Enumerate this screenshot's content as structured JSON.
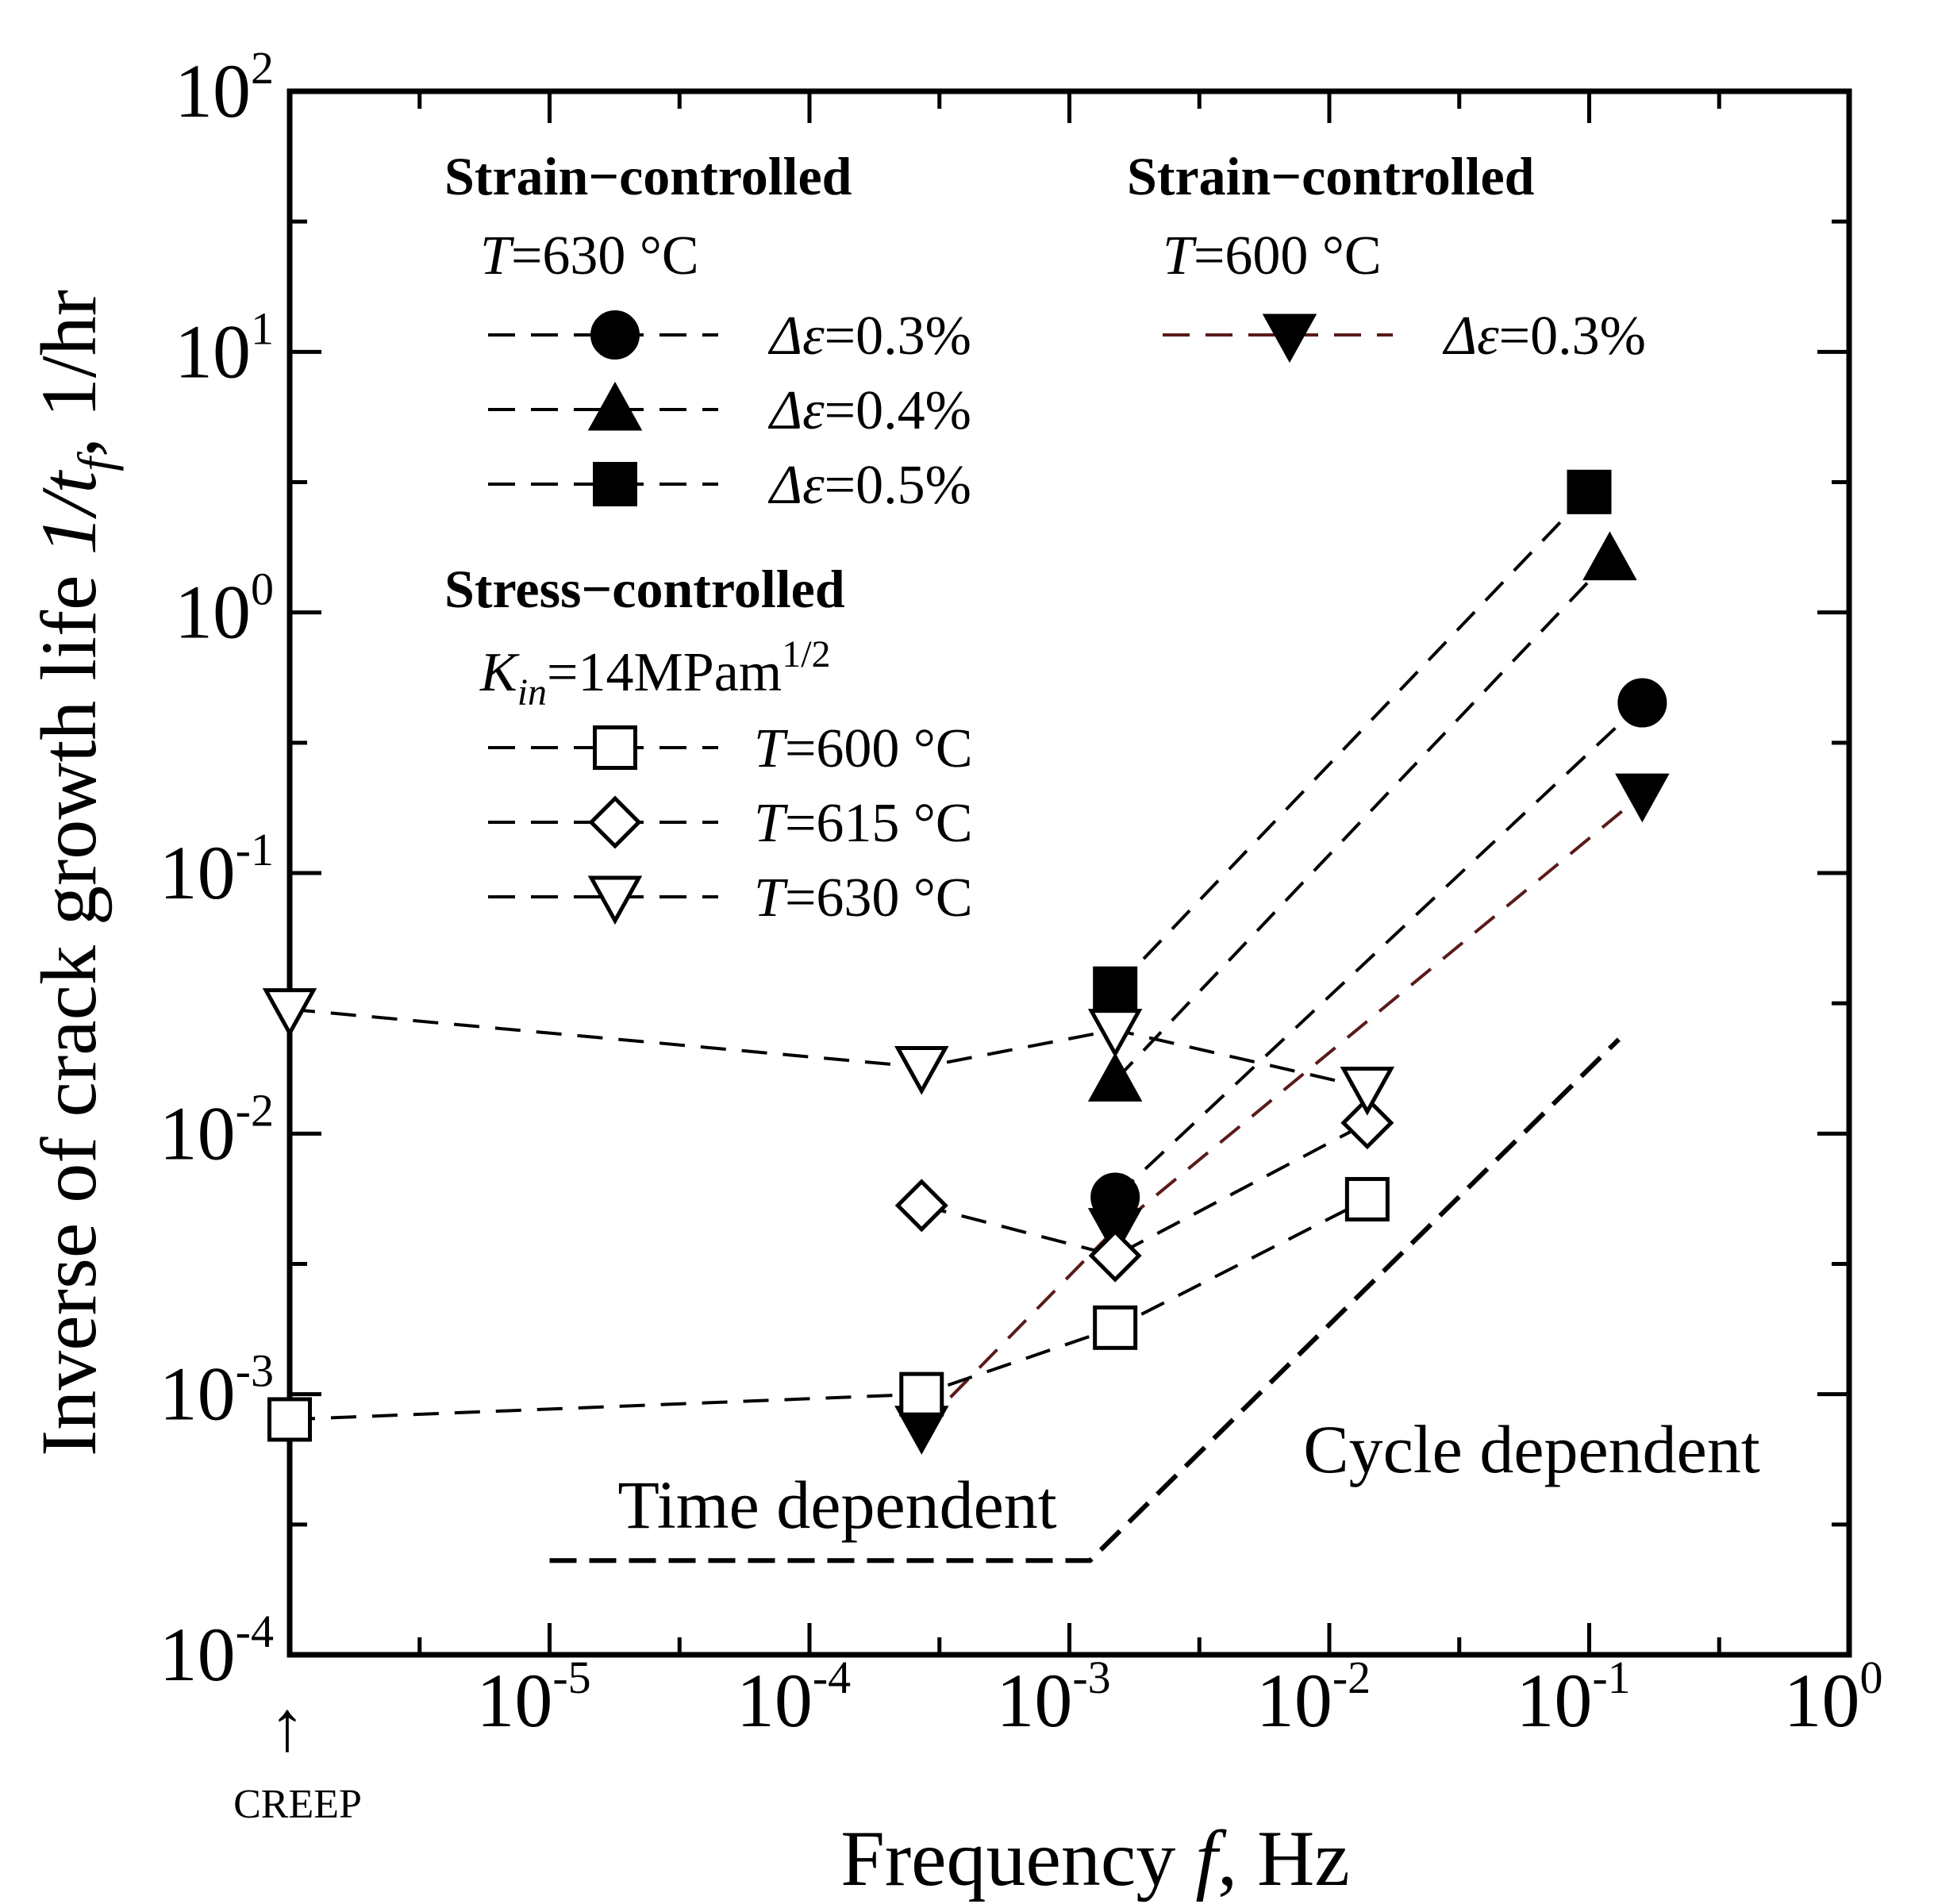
{
  "chart_data": {
    "type": "scatter",
    "xscale": "log",
    "yscale": "log",
    "xlim": [
      1e-06,
      1
    ],
    "ylim": [
      0.0001,
      100
    ],
    "xlabel": "Frequency f, Hz",
    "xlabel_parts": {
      "prefix": "Frequency ",
      "var": "f",
      "suffix": ", Hz"
    },
    "ylabel": "Inverse of crack growth life 1/tf, 1/hr",
    "ylabel_parts": {
      "prefix": "Inverse of crack growth life ",
      "var": "1/t",
      "sub": "f",
      "suffix": ", 1/hr"
    },
    "x_ticks": [
      {
        "value": 1e-05,
        "base": "10",
        "exp": "-5"
      },
      {
        "value": 0.0001,
        "base": "10",
        "exp": "-4"
      },
      {
        "value": 0.001,
        "base": "10",
        "exp": "-3"
      },
      {
        "value": 0.01,
        "base": "10",
        "exp": "-2"
      },
      {
        "value": 0.1,
        "base": "10",
        "exp": "-1"
      },
      {
        "value": 1,
        "base": "10",
        "exp": "0"
      }
    ],
    "y_ticks": [
      {
        "value": 0.0001,
        "base": "10",
        "exp": "-4"
      },
      {
        "value": 0.001,
        "base": "10",
        "exp": "-3"
      },
      {
        "value": 0.01,
        "base": "10",
        "exp": "-2"
      },
      {
        "value": 0.1,
        "base": "10",
        "exp": "-1"
      },
      {
        "value": 1,
        "base": "10",
        "exp": "0"
      },
      {
        "value": 10,
        "base": "10",
        "exp": "1"
      },
      {
        "value": 100,
        "base": "10",
        "exp": "2"
      }
    ],
    "creep_label": "CREEP",
    "creep_arrow": "↑",
    "series": [
      {
        "name": "Strain-controlled T=630 °C Δε=0.3%",
        "marker": "circle",
        "filled": true,
        "line_color": "#000000",
        "x": [
          0.0015,
          0.16
        ],
        "y": [
          0.0057,
          0.45
        ]
      },
      {
        "name": "Strain-controlled T=630 °C Δε=0.4%",
        "marker": "triangle-up",
        "filled": true,
        "line_color": "#000000",
        "x": [
          0.0015,
          0.12
        ],
        "y": [
          0.016,
          1.6
        ]
      },
      {
        "name": "Strain-controlled T=630 °C Δε=0.5%",
        "marker": "square",
        "filled": true,
        "line_color": "#000000",
        "x": [
          0.0015,
          0.1
        ],
        "y": [
          0.036,
          2.9
        ]
      },
      {
        "name": "Strain-controlled T=600 °C Δε=0.3%",
        "marker": "triangle-down",
        "filled": true,
        "line_color": "#5a1a1a",
        "x": [
          0.00027,
          0.0015,
          0.16
        ],
        "y": [
          0.00075,
          0.0043,
          0.2
        ]
      },
      {
        "name": "Stress-controlled T=600 °C",
        "marker": "square",
        "filled": false,
        "line_color": "#000000",
        "x": [
          1e-06,
          0.00027,
          0.0015,
          0.014
        ],
        "y": [
          0.0008,
          0.001,
          0.0018,
          0.0056
        ]
      },
      {
        "name": "Stress-controlled T=615 °C",
        "marker": "diamond",
        "filled": false,
        "line_color": "#000000",
        "x": [
          0.00027,
          0.0015,
          0.014
        ],
        "y": [
          0.0053,
          0.0034,
          0.011
        ]
      },
      {
        "name": "Stress-controlled T=630 °C",
        "marker": "triangle-down",
        "filled": false,
        "line_color": "#000000",
        "x": [
          1e-06,
          0.00027,
          0.0015,
          0.014
        ],
        "y": [
          0.03,
          0.018,
          0.025,
          0.015
        ]
      }
    ],
    "reference_line": {
      "x": [
        1e-05,
        0.0012,
        0.13
      ],
      "y": [
        0.00023,
        0.00023,
        0.023
      ]
    },
    "annotations": {
      "time_dependent": "Time dependent",
      "cycle_dependent": "Cycle dependent"
    },
    "legend": {
      "group1": {
        "header": "Strain−controlled",
        "condition_var": "T",
        "condition_val": "=630 °C",
        "entries": [
          {
            "var": "Δε",
            "val": "=0.3%",
            "marker": "circle",
            "filled": true
          },
          {
            "var": "Δε",
            "val": "=0.4%",
            "marker": "triangle-up",
            "filled": true
          },
          {
            "var": "Δε",
            "val": "=0.5%",
            "marker": "square",
            "filled": true
          }
        ]
      },
      "group2": {
        "header": "Stress−controlled",
        "condition_var": "K",
        "condition_sub": "in",
        "condition_val": "=14MPam",
        "condition_sup": "1/2",
        "entries": [
          {
            "var": "T",
            "val": "=600 °C",
            "marker": "square",
            "filled": false
          },
          {
            "var": "T",
            "val": "=615 °C",
            "marker": "diamond",
            "filled": false
          },
          {
            "var": "T",
            "val": "=630 °C",
            "marker": "triangle-down",
            "filled": false
          }
        ]
      },
      "group3": {
        "header": "Strain−controlled",
        "condition_var": "T",
        "condition_val": "=600 °C",
        "entries": [
          {
            "var": "Δε",
            "val": "=0.3%",
            "marker": "triangle-down",
            "filled": true,
            "line_color": "#5a1a1a"
          }
        ]
      }
    }
  }
}
